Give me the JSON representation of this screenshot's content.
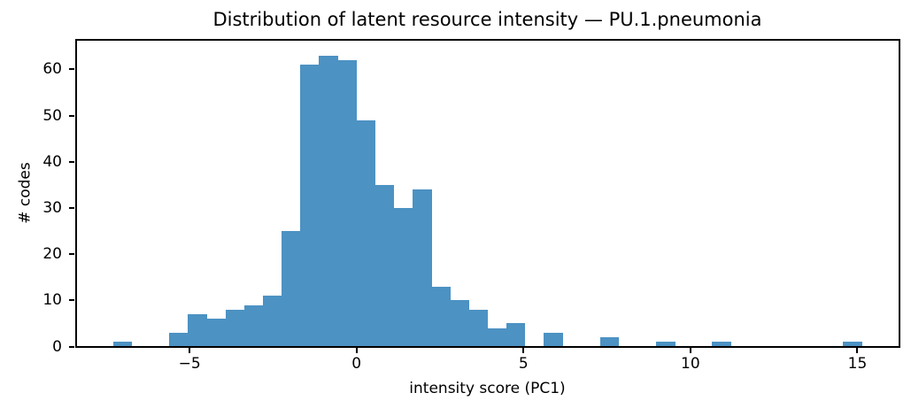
{
  "chart_data": {
    "type": "bar",
    "subtype": "histogram",
    "title": "Distribution of latent resource intensity — PU.1.pneumonia",
    "xlabel": "intensity score (PC1)",
    "ylabel": "# codes",
    "bar_color": "#4C92C3",
    "background_color": "#FFFFFF",
    "spine_color": "#000000",
    "grid": false,
    "legend_position": "none",
    "xlim": [
      -8.41,
      16.26
    ],
    "ylim": [
      0,
      66.5
    ],
    "xticks": {
      "values": [
        -5,
        0,
        5,
        10,
        15
      ],
      "labels": [
        "−5",
        "0",
        "5",
        "10",
        "15"
      ]
    },
    "yticks": {
      "values": [
        0,
        10,
        20,
        30,
        40,
        50,
        60
      ],
      "labels": [
        "0",
        "10",
        "20",
        "30",
        "40",
        "50",
        "60"
      ]
    },
    "bin_edges": [
      -7.286,
      -6.726,
      -6.165,
      -5.604,
      -5.044,
      -4.483,
      -3.923,
      -3.362,
      -2.802,
      -2.241,
      -1.681,
      -1.12,
      -0.56,
      0.001,
      0.561,
      1.122,
      1.682,
      2.243,
      2.803,
      3.364,
      3.924,
      4.485,
      5.045,
      5.606,
      6.166,
      6.727,
      7.287,
      7.848,
      8.408,
      8.969,
      9.529,
      10.09,
      10.65,
      11.211,
      11.771,
      12.332,
      12.892,
      13.453,
      14.013,
      14.574,
      15.134
    ],
    "counts": [
      1,
      0,
      0,
      3,
      7,
      6,
      8,
      9,
      11,
      25,
      61,
      63,
      62,
      49,
      35,
      30,
      34,
      13,
      10,
      8,
      4,
      5,
      0,
      3,
      0,
      0,
      2,
      0,
      0,
      1,
      0,
      0,
      1,
      0,
      0,
      0,
      0,
      0,
      0,
      1
    ]
  }
}
